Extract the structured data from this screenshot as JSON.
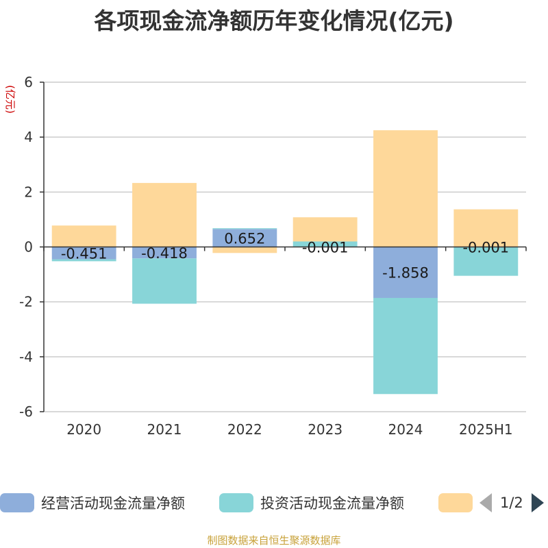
{
  "chart_data": {
    "type": "bar",
    "stacked": true,
    "title": "各项现金流净额历年变化情况(亿元)",
    "ylabel": "(亿元)",
    "ylim": [
      -6,
      6
    ],
    "yticks": [
      6,
      4,
      2,
      0,
      -2,
      -4,
      -6
    ],
    "categories": [
      "2020",
      "2021",
      "2022",
      "2023",
      "2024",
      "2025H1"
    ],
    "grid": true,
    "series": [
      {
        "name": "经营活动现金流量净额",
        "color": "#8eaedb",
        "values": [
          -0.451,
          -0.418,
          0.652,
          -0.001,
          -1.858,
          -0.001
        ],
        "labels": [
          "-0.451",
          "-0.418",
          "0.652",
          "-0.001",
          "-1.858",
          "-0.001"
        ]
      },
      {
        "name": "投资活动现金流量净额",
        "color": "#88d5d8",
        "values": [
          -0.07,
          -1.65,
          0.03,
          0.2,
          -3.5,
          -1.05
        ]
      },
      {
        "color": "#fed89a",
        "values": [
          0.78,
          2.33,
          -0.22,
          0.88,
          4.25,
          1.37
        ]
      }
    ]
  },
  "legend": {
    "items": [
      {
        "label": "经营活动现金流量净额",
        "color": "#8eaedb"
      },
      {
        "label": "投资活动现金流量净额",
        "color": "#88d5d8"
      },
      {
        "label": "",
        "color": "#fed89a"
      }
    ],
    "pager": "1/2"
  },
  "source_note": "制图数据来自恒生聚源数据库"
}
